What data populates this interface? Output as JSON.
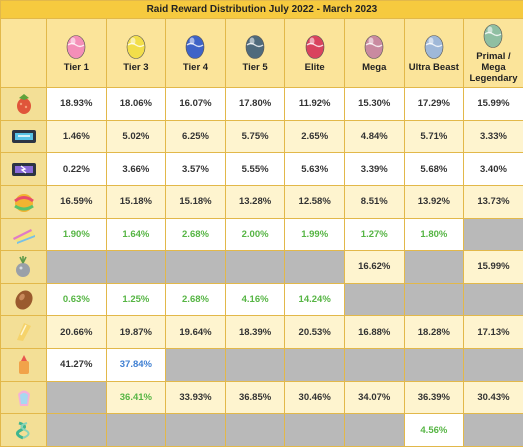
{
  "title": "Raid Reward Distribution July 2022 - March 2023",
  "tiers": [
    {
      "label": "Tier 1",
      "egg_color": "#f48fb8",
      "egg_icon": "tier-1-egg-icon"
    },
    {
      "label": "Tier 3",
      "egg_color": "#f2de4a",
      "egg_icon": "tier-3-egg-icon"
    },
    {
      "label": "Tier 4",
      "egg_color": "#3e63c7",
      "egg_icon": "tier-4-egg-icon"
    },
    {
      "label": "Tier 5",
      "egg_color": "#4f6a7c",
      "egg_icon": "tier-5-egg-icon"
    },
    {
      "label": "Elite",
      "egg_color": "#d9435e",
      "egg_icon": "elite-egg-icon"
    },
    {
      "label": "Mega",
      "egg_color": "#c98aa0",
      "egg_icon": "mega-egg-icon"
    },
    {
      "label": "Ultra Beast",
      "egg_color": "#9fb8d8",
      "egg_icon": "ultra-beast-egg-icon"
    },
    {
      "label": "Primal / Mega Legendary",
      "egg_color": "#8fbfa2",
      "egg_icon": "primal-egg-icon"
    }
  ],
  "rows": [
    {
      "item_icon": "razz-berry-icon",
      "values": [
        "18.93%",
        "18.06%",
        "16.07%",
        "17.80%",
        "11.92%",
        "15.30%",
        "17.29%",
        "15.99%"
      ],
      "colors": [
        "d",
        "d",
        "d",
        "d",
        "d",
        "d",
        "d",
        "d"
      ]
    },
    {
      "item_icon": "fast-tm-icon",
      "values": [
        "1.46%",
        "5.02%",
        "6.25%",
        "5.75%",
        "2.65%",
        "4.84%",
        "5.71%",
        "3.33%"
      ],
      "colors": [
        "d",
        "d",
        "d",
        "d",
        "d",
        "d",
        "d",
        "d"
      ]
    },
    {
      "item_icon": "charged-tm-icon",
      "values": [
        "0.22%",
        "3.66%",
        "3.57%",
        "5.55%",
        "5.63%",
        "3.39%",
        "5.68%",
        "3.40%"
      ],
      "colors": [
        "d",
        "d",
        "d",
        "d",
        "d",
        "d",
        "d",
        "d"
      ]
    },
    {
      "item_icon": "golden-razz-berry-icon",
      "values": [
        "16.59%",
        "15.18%",
        "15.18%",
        "13.28%",
        "12.58%",
        "8.51%",
        "13.92%",
        "13.73%"
      ],
      "colors": [
        "d",
        "d",
        "d",
        "d",
        "d",
        "d",
        "d",
        "d"
      ]
    },
    {
      "item_icon": "rare-candy-icon",
      "values": [
        "1.90%",
        "1.64%",
        "2.68%",
        "2.00%",
        "1.99%",
        "1.27%",
        "1.80%",
        ""
      ],
      "colors": [
        "g",
        "g",
        "g",
        "g",
        "g",
        "g",
        "g",
        "n"
      ]
    },
    {
      "item_icon": "silver-pinap-berry-icon",
      "values": [
        "",
        "",
        "",
        "",
        "",
        "16.62%",
        "",
        "15.99%"
      ],
      "colors": [
        "n",
        "n",
        "n",
        "n",
        "n",
        "d",
        "n",
        "d"
      ]
    },
    {
      "item_icon": "rare-candy-xl-icon",
      "values": [
        "0.63%",
        "1.25%",
        "2.68%",
        "4.16%",
        "14.24%",
        "",
        "",
        ""
      ],
      "colors": [
        "g",
        "g",
        "g",
        "g",
        "g",
        "n",
        "n",
        "n"
      ]
    },
    {
      "item_icon": "stardust-icon",
      "values": [
        "20.66%",
        "19.87%",
        "19.64%",
        "18.39%",
        "20.53%",
        "16.88%",
        "18.28%",
        "17.13%"
      ],
      "colors": [
        "d",
        "d",
        "d",
        "d",
        "d",
        "d",
        "d",
        "d"
      ]
    },
    {
      "item_icon": "candy-icon",
      "values": [
        "41.27%",
        "37.84%",
        "",
        "",
        "",
        "",
        "",
        ""
      ],
      "colors": [
        "d",
        "b",
        "n",
        "n",
        "n",
        "n",
        "n",
        "n"
      ]
    },
    {
      "item_icon": "mega-energy-icon",
      "values": [
        "",
        "36.41%",
        "33.93%",
        "36.85%",
        "30.46%",
        "34.07%",
        "36.39%",
        "30.43%"
      ],
      "colors": [
        "n",
        "g",
        "d",
        "d",
        "d",
        "d",
        "d",
        "d"
      ]
    },
    {
      "item_icon": "beast-ball-icon",
      "values": [
        "",
        "",
        "",
        "",
        "",
        "",
        "4.56%",
        ""
      ],
      "colors": [
        "n",
        "n",
        "n",
        "n",
        "n",
        "n",
        "g",
        "n"
      ]
    }
  ],
  "colors": {
    "title_bg": "#f6ca3f",
    "header_bg": "#fbe49a",
    "border": "#e2b84a",
    "alt_row": "#fef4cf",
    "na_cell": "#b9b9b9",
    "green_text": "#56b544",
    "blue_text": "#3f7fd2"
  }
}
